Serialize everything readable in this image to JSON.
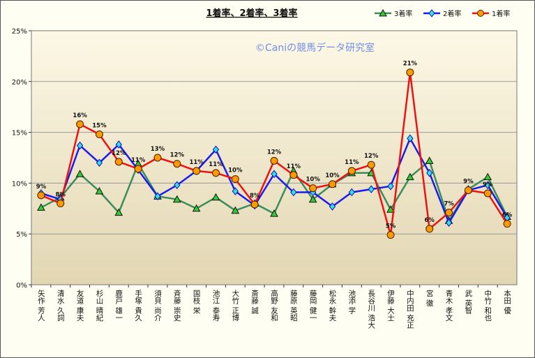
{
  "chart_data": {
    "type": "line",
    "title": "1着率、2着率、3着率",
    "watermark": "©Caniの競馬データ研究室",
    "ylim": [
      0,
      25
    ],
    "y_ticks": [
      "0%",
      "5%",
      "10%",
      "15%",
      "20%",
      "25%"
    ],
    "grid": true,
    "legend_position": "top-right",
    "categories": [
      "矢作 芳人",
      "清水 久詞",
      "友道 康夫",
      "杉山 晴紀",
      "鹿戸 雄一",
      "手塚 貴久",
      "須貝 尚介",
      "斉藤 崇史",
      "国枝 栄",
      "池江 泰寿",
      "大竹 正博",
      "斎藤 誠",
      "高野 友和",
      "藤原 英昭",
      "藤岡 健一",
      "松永 幹夫",
      "池添 学",
      "長谷川 浩大",
      "伊藤 大士",
      "中内田 充正",
      "宮 徹",
      "青木 孝文",
      "武 英智",
      "中竹 和也",
      "本田 優"
    ],
    "series": [
      {
        "name": "3着率",
        "color": "#3a8c5c",
        "marker": "triangle",
        "marker_fill": "#33cc33",
        "values": [
          7.6,
          8.6,
          10.9,
          9.2,
          7.1,
          11.9,
          8.7,
          8.4,
          7.5,
          8.6,
          7.3,
          8.0,
          7.0,
          11.2,
          8.4,
          9.9,
          11.0,
          11.0,
          7.4,
          10.6,
          12.2,
          6.3,
          9.4,
          10.6,
          6.7
        ]
      },
      {
        "name": "2着率",
        "color": "#1a1aee",
        "marker": "diamond",
        "marker_fill": "#33ddee",
        "values": [
          9.0,
          8.4,
          13.7,
          12.0,
          13.8,
          11.3,
          8.7,
          9.8,
          11.2,
          13.3,
          9.2,
          7.8,
          10.9,
          9.1,
          9.1,
          7.7,
          9.1,
          9.4,
          9.7,
          14.4,
          11.0,
          6.1,
          9.3,
          9.8,
          6.6
        ]
      },
      {
        "name": "1着率",
        "color": "#ee1111",
        "marker": "circle",
        "marker_fill": "#ff9900",
        "values": [
          8.8,
          8.0,
          15.8,
          14.8,
          12.1,
          11.4,
          12.5,
          11.9,
          11.2,
          11.0,
          10.4,
          7.9,
          12.2,
          10.8,
          9.5,
          9.9,
          11.2,
          11.8,
          4.9,
          20.9,
          5.5,
          7.1,
          9.3,
          9.0,
          6.0
        ],
        "data_labels": [
          "9%",
          "8%",
          "16%",
          "15%",
          "12%",
          "11%",
          "13%",
          "12%",
          "11%",
          "11%",
          "10%",
          "8%",
          "12%",
          "11%",
          "10%",
          "10%",
          "11%",
          "12%",
          "5%",
          "21%",
          "6%",
          "7%",
          "9%",
          "9%",
          "6%"
        ]
      }
    ]
  }
}
